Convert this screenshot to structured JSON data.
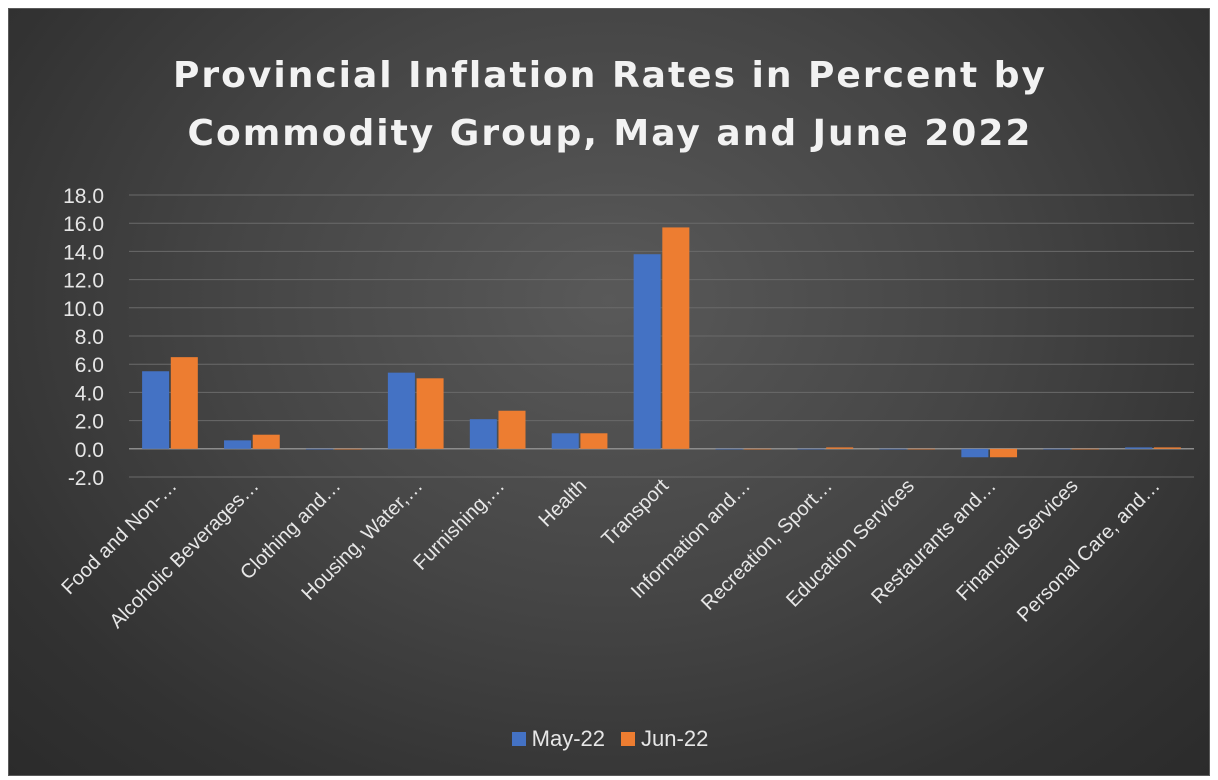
{
  "chart_data": {
    "type": "bar",
    "title_lines": [
      "Provincial Inflation Rates in Percent by",
      "Commodity Group, May and June 2022"
    ],
    "categories": [
      "Food and Non-…",
      "Alcoholic Beverages…",
      "Clothing and…",
      "Housing, Water,…",
      "Furnishing,…",
      "Health",
      "Transport",
      "Information and…",
      "Recreation, Sport…",
      "Education Services",
      "Restaurants and…",
      "Financial Services",
      "Personal Care, and…"
    ],
    "series": [
      {
        "name": "May-22",
        "color": "#4472c4",
        "values": [
          5.5,
          0.6,
          0.0,
          5.4,
          2.1,
          1.1,
          13.8,
          0.0,
          0.0,
          0.0,
          -0.6,
          0.0,
          0.1
        ]
      },
      {
        "name": "Jun-22",
        "color": "#ed7d31",
        "values": [
          6.5,
          1.0,
          0.0,
          5.0,
          2.7,
          1.1,
          15.7,
          0.0,
          0.1,
          0.0,
          -0.6,
          0.0,
          0.1
        ]
      }
    ],
    "ylim": [
      -2.0,
      18.0
    ],
    "ytick_step": 2.0,
    "ytick_labels": [
      "-2.0",
      "0.0",
      "2.0",
      "4.0",
      "6.0",
      "8.0",
      "10.0",
      "12.0",
      "14.0",
      "16.0",
      "18.0"
    ],
    "xlabel": "",
    "ylabel": "",
    "grid": true,
    "legend_position": "bottom"
  }
}
